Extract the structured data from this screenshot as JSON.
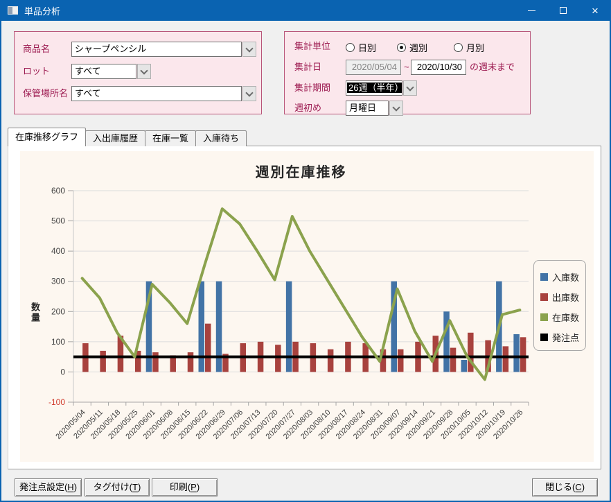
{
  "window": {
    "title": "単品分析"
  },
  "titlebar": {
    "close_icon": "×"
  },
  "filters_left": {
    "rows": [
      {
        "label": "商品名",
        "value": "シャープペンシル"
      },
      {
        "label": "ロット",
        "value": "すべて"
      },
      {
        "label": "保管場所名",
        "value": "すべて"
      }
    ]
  },
  "filters_right": {
    "unit_label": "集計単位",
    "unit_options": [
      {
        "label": "日別",
        "selected": false
      },
      {
        "label": "週別",
        "selected": true
      },
      {
        "label": "月別",
        "selected": false
      }
    ],
    "date_label": "集計日",
    "date_from": "2020/05/04",
    "date_separator": "~",
    "date_to": "2020/10/30",
    "date_suffix": "の週末まで",
    "period_label": "集計期間",
    "period_value": "26週（半年）",
    "weekstart_label": "週初め",
    "weekstart_value": "月曜日"
  },
  "tabs": [
    {
      "label": "在庫推移グラフ",
      "active": true
    },
    {
      "label": "入出庫履歴",
      "active": false
    },
    {
      "label": "在庫一覧",
      "active": false
    },
    {
      "label": "入庫待ち",
      "active": false
    }
  ],
  "chart_data": {
    "type": "bar",
    "title": "週別在庫推移",
    "ylabel": "数量",
    "ylim": [
      -100,
      600
    ],
    "ytick_step": 100,
    "grid": true,
    "legend_position": "right",
    "categories": [
      "2020/05/04",
      "2020/05/11",
      "2020/05/18",
      "2020/05/25",
      "2020/06/01",
      "2020/06/08",
      "2020/06/15",
      "2020/06/22",
      "2020/06/29",
      "2020/07/06",
      "2020/07/13",
      "2020/07/20",
      "2020/07/27",
      "2020/08/03",
      "2020/08/10",
      "2020/08/17",
      "2020/08/24",
      "2020/08/31",
      "2020/09/07",
      "2020/09/14",
      "2020/09/21",
      "2020/09/28",
      "2020/10/05",
      "2020/10/12",
      "2020/10/19",
      "2020/10/26"
    ],
    "series": [
      {
        "name": "入庫数",
        "type": "bar",
        "color": "#4273a6",
        "values": [
          0,
          0,
          0,
          0,
          300,
          0,
          0,
          300,
          300,
          0,
          0,
          0,
          300,
          0,
          0,
          0,
          0,
          0,
          300,
          0,
          0,
          200,
          40,
          0,
          300,
          125
        ]
      },
      {
        "name": "出庫数",
        "type": "bar",
        "color": "#a8423e",
        "values": [
          95,
          70,
          120,
          70,
          65,
          55,
          65,
          160,
          60,
          95,
          100,
          90,
          100,
          95,
          75,
          100,
          95,
          75,
          75,
          100,
          120,
          80,
          130,
          105,
          85,
          115
        ]
      },
      {
        "name": "在庫数",
        "type": "line",
        "color": "#8ba24d",
        "values": [
          310,
          245,
          130,
          50,
          290,
          230,
          160,
          355,
          540,
          490,
          400,
          305,
          515,
          400,
          305,
          210,
          115,
          35,
          275,
          135,
          35,
          170,
          50,
          -25,
          190,
          205
        ]
      },
      {
        "name": "発注点",
        "type": "hline",
        "color": "#000000",
        "value": 50
      }
    ],
    "negative_tick_color": "#d03a2b"
  },
  "buttons": {
    "order_point": "発注点設定(H)",
    "tag": "タグ付け(T)",
    "print": "印刷(P)",
    "close": "閉じる(C)"
  }
}
